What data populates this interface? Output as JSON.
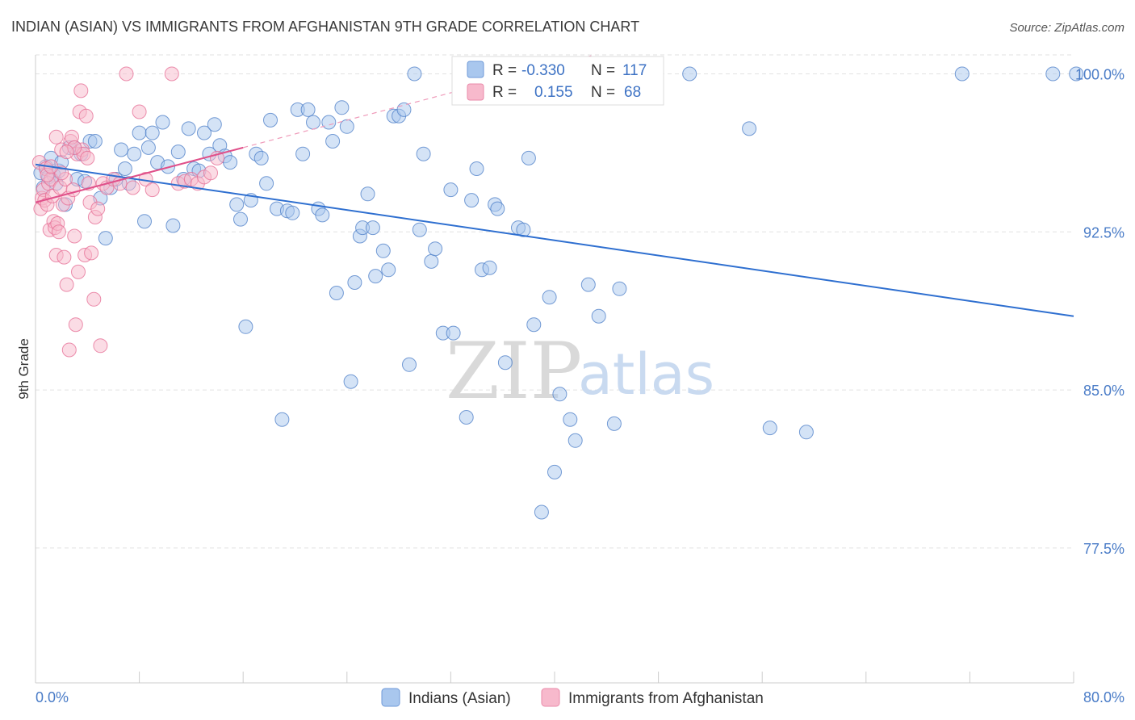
{
  "chart_data": {
    "type": "scatter",
    "title": "INDIAN (ASIAN) VS IMMIGRANTS FROM AFGHANISTAN 9TH GRADE CORRELATION CHART",
    "source": "Source: ZipAtlas.com",
    "ylabel": "9th Grade",
    "xlabel": "",
    "xlim": [
      0,
      80
    ],
    "ylim": [
      71.1,
      100.9
    ],
    "x_tick_labels": [
      "0.0%",
      "80.0%"
    ],
    "y_ticks": [
      {
        "value": 100.0,
        "label": "100.0%"
      },
      {
        "value": 92.5,
        "label": "92.5%"
      },
      {
        "value": 85.0,
        "label": "85.0%"
      },
      {
        "value": 77.5,
        "label": "77.5%"
      }
    ],
    "legend": [
      {
        "r_label": "R =",
        "r_value": "-0.330",
        "n_label": "N =",
        "n_value": "117"
      },
      {
        "r_label": "R =",
        "r_value": "0.155",
        "n_label": "N =",
        "n_value": "68"
      }
    ],
    "watermark": {
      "zip": "ZIP",
      "atlas": "atlas"
    },
    "colors": {
      "blue_fill": "#a9c7ee",
      "blue_stroke": "#4a7cc7",
      "blue_line": "#2e6fd0",
      "pink_fill": "#f7b9cc",
      "pink_stroke": "#e56b93",
      "pink_line": "#e0508a",
      "grid": "#e2e2e2"
    },
    "series": [
      {
        "name": "Indians (Asian)",
        "color": "#a9c7ee",
        "trend": {
          "x": [
            0,
            80
          ],
          "y": [
            95.7,
            88.5
          ]
        },
        "points": [
          [
            0.4,
            95.3
          ],
          [
            0.6,
            94.6
          ],
          [
            0.8,
            95.6
          ],
          [
            1.0,
            95.1
          ],
          [
            1.2,
            96.0
          ],
          [
            1.4,
            95.2
          ],
          [
            1.6,
            94.8
          ],
          [
            1.8,
            95.4
          ],
          [
            2.0,
            95.8
          ],
          [
            2.3,
            93.8
          ],
          [
            2.6,
            96.5
          ],
          [
            3.0,
            96.5
          ],
          [
            3.2,
            95.0
          ],
          [
            3.5,
            96.2
          ],
          [
            3.8,
            94.9
          ],
          [
            4.2,
            96.8
          ],
          [
            4.6,
            96.8
          ],
          [
            5.0,
            94.1
          ],
          [
            5.4,
            92.2
          ],
          [
            5.8,
            94.6
          ],
          [
            6.2,
            95.0
          ],
          [
            6.6,
            96.4
          ],
          [
            6.9,
            95.5
          ],
          [
            7.2,
            94.8
          ],
          [
            7.6,
            96.2
          ],
          [
            8.0,
            97.2
          ],
          [
            8.4,
            93.0
          ],
          [
            8.7,
            96.5
          ],
          [
            9.0,
            97.2
          ],
          [
            9.4,
            95.8
          ],
          [
            9.8,
            97.7
          ],
          [
            10.2,
            95.6
          ],
          [
            10.6,
            92.8
          ],
          [
            11.0,
            96.3
          ],
          [
            11.4,
            95.0
          ],
          [
            11.8,
            97.4
          ],
          [
            12.2,
            95.5
          ],
          [
            12.6,
            95.4
          ],
          [
            13.0,
            97.2
          ],
          [
            13.4,
            96.2
          ],
          [
            13.8,
            97.6
          ],
          [
            14.2,
            96.6
          ],
          [
            14.6,
            96.1
          ],
          [
            15.0,
            95.8
          ],
          [
            15.5,
            93.8
          ],
          [
            15.8,
            93.1
          ],
          [
            16.2,
            88.0
          ],
          [
            16.6,
            94.0
          ],
          [
            17.0,
            96.2
          ],
          [
            17.4,
            96.0
          ],
          [
            17.8,
            94.8
          ],
          [
            18.1,
            97.8
          ],
          [
            18.6,
            93.6
          ],
          [
            19.0,
            83.6
          ],
          [
            19.4,
            93.5
          ],
          [
            19.8,
            93.4
          ],
          [
            20.2,
            98.3
          ],
          [
            20.6,
            96.2
          ],
          [
            21.0,
            98.3
          ],
          [
            21.4,
            97.7
          ],
          [
            21.8,
            93.6
          ],
          [
            22.1,
            93.3
          ],
          [
            22.6,
            97.7
          ],
          [
            22.9,
            96.8
          ],
          [
            23.2,
            89.6
          ],
          [
            23.6,
            98.4
          ],
          [
            24.0,
            97.5
          ],
          [
            24.3,
            85.4
          ],
          [
            24.6,
            90.1
          ],
          [
            25.0,
            92.3
          ],
          [
            25.2,
            92.7
          ],
          [
            25.6,
            94.3
          ],
          [
            26.0,
            92.7
          ],
          [
            26.2,
            90.4
          ],
          [
            26.8,
            91.6
          ],
          [
            27.2,
            90.7
          ],
          [
            27.6,
            98.0
          ],
          [
            28.0,
            98.0
          ],
          [
            28.4,
            98.3
          ],
          [
            28.8,
            86.2
          ],
          [
            29.2,
            100.0
          ],
          [
            29.6,
            92.6
          ],
          [
            29.9,
            96.2
          ],
          [
            30.5,
            91.1
          ],
          [
            30.8,
            91.7
          ],
          [
            31.4,
            87.7
          ],
          [
            32.0,
            94.5
          ],
          [
            32.2,
            87.7
          ],
          [
            33.2,
            83.7
          ],
          [
            33.6,
            94.0
          ],
          [
            34.0,
            95.5
          ],
          [
            34.4,
            90.7
          ],
          [
            35.0,
            90.8
          ],
          [
            35.4,
            93.8
          ],
          [
            35.6,
            93.6
          ],
          [
            36.2,
            86.3
          ],
          [
            37.2,
            92.7
          ],
          [
            37.6,
            92.6
          ],
          [
            38.0,
            96.0
          ],
          [
            38.4,
            88.1
          ],
          [
            39.0,
            79.2
          ],
          [
            39.6,
            89.4
          ],
          [
            40.0,
            81.1
          ],
          [
            40.4,
            84.8
          ],
          [
            41.2,
            83.6
          ],
          [
            41.6,
            82.6
          ],
          [
            42.6,
            90.0
          ],
          [
            43.4,
            88.5
          ],
          [
            44.6,
            83.4
          ],
          [
            45.0,
            89.8
          ],
          [
            50.4,
            100.0
          ],
          [
            55.0,
            97.4
          ],
          [
            56.6,
            83.2
          ],
          [
            59.4,
            83.0
          ],
          [
            71.4,
            100.0
          ],
          [
            78.4,
            100.0
          ],
          [
            80.2,
            100.0
          ]
        ]
      },
      {
        "name": "Immigrants from Afghanistan",
        "color": "#f7b9cc",
        "trend": {
          "x": [
            0,
            16
          ],
          "y": [
            93.9,
            96.5
          ]
        },
        "points": [
          [
            0.3,
            95.8
          ],
          [
            0.4,
            93.6
          ],
          [
            0.5,
            94.1
          ],
          [
            0.6,
            94.5
          ],
          [
            0.7,
            94.0
          ],
          [
            0.8,
            95.5
          ],
          [
            0.9,
            93.8
          ],
          [
            1.0,
            94.8
          ],
          [
            1.1,
            92.6
          ],
          [
            1.2,
            95.0
          ],
          [
            1.3,
            94.2
          ],
          [
            1.4,
            93.0
          ],
          [
            1.5,
            92.7
          ],
          [
            1.6,
            91.4
          ],
          [
            1.7,
            92.9
          ],
          [
            1.8,
            92.5
          ],
          [
            1.9,
            94.6
          ],
          [
            2.0,
            96.4
          ],
          [
            2.1,
            93.8
          ],
          [
            2.2,
            91.3
          ],
          [
            2.3,
            95.0
          ],
          [
            2.4,
            90.0
          ],
          [
            2.5,
            94.1
          ],
          [
            2.6,
            86.9
          ],
          [
            2.7,
            96.8
          ],
          [
            2.8,
            97.0
          ],
          [
            2.9,
            94.5
          ],
          [
            3.0,
            92.3
          ],
          [
            3.1,
            88.1
          ],
          [
            3.2,
            96.2
          ],
          [
            3.3,
            90.6
          ],
          [
            3.4,
            98.2
          ],
          [
            3.5,
            99.2
          ],
          [
            3.6,
            96.4
          ],
          [
            3.7,
            96.2
          ],
          [
            3.8,
            91.4
          ],
          [
            3.9,
            98.0
          ],
          [
            4.0,
            96.0
          ],
          [
            4.1,
            94.8
          ],
          [
            4.2,
            93.9
          ],
          [
            4.3,
            91.5
          ],
          [
            4.5,
            89.3
          ],
          [
            4.6,
            93.2
          ],
          [
            4.8,
            93.6
          ],
          [
            5.0,
            87.1
          ],
          [
            5.2,
            94.8
          ],
          [
            5.5,
            94.6
          ],
          [
            6.0,
            95.0
          ],
          [
            6.5,
            94.8
          ],
          [
            7.0,
            100.0
          ],
          [
            7.5,
            94.6
          ],
          [
            8.0,
            98.2
          ],
          [
            8.5,
            95.0
          ],
          [
            9.0,
            94.5
          ],
          [
            10.5,
            100.0
          ],
          [
            11.0,
            94.8
          ],
          [
            11.5,
            94.9
          ],
          [
            12.0,
            95.0
          ],
          [
            12.5,
            94.8
          ],
          [
            13.0,
            95.1
          ],
          [
            13.5,
            95.3
          ],
          [
            14.0,
            96.0
          ],
          [
            2.0,
            95.3
          ],
          [
            1.6,
            97.0
          ],
          [
            0.9,
            95.2
          ],
          [
            1.2,
            95.6
          ],
          [
            3.0,
            96.5
          ],
          [
            2.4,
            96.3
          ]
        ]
      }
    ]
  },
  "bottom_legend": [
    {
      "label": "Indians (Asian)"
    },
    {
      "label": "Immigrants from Afghanistan"
    }
  ]
}
